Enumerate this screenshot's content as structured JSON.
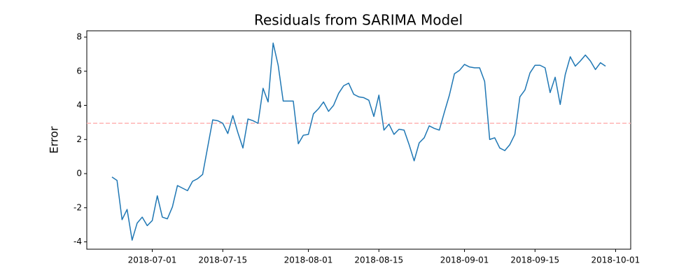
{
  "chart_data": {
    "type": "line",
    "title": "Residuals from SARIMA Model",
    "y_label": "Error",
    "x": [
      "2018-06-23",
      "2018-06-24",
      "2018-06-25",
      "2018-06-26",
      "2018-06-27",
      "2018-06-28",
      "2018-06-29",
      "2018-06-30",
      "2018-07-01",
      "2018-07-02",
      "2018-07-03",
      "2018-07-04",
      "2018-07-05",
      "2018-07-06",
      "2018-07-07",
      "2018-07-08",
      "2018-07-09",
      "2018-07-10",
      "2018-07-11",
      "2018-07-12",
      "2018-07-13",
      "2018-07-14",
      "2018-07-15",
      "2018-07-16",
      "2018-07-17",
      "2018-07-18",
      "2018-07-19",
      "2018-07-20",
      "2018-07-21",
      "2018-07-22",
      "2018-07-23",
      "2018-07-24",
      "2018-07-25",
      "2018-07-26",
      "2018-07-27",
      "2018-07-28",
      "2018-07-29",
      "2018-07-30",
      "2018-07-31",
      "2018-08-01",
      "2018-08-02",
      "2018-08-03",
      "2018-08-04",
      "2018-08-05",
      "2018-08-06",
      "2018-08-07",
      "2018-08-08",
      "2018-08-09",
      "2018-08-10",
      "2018-08-11",
      "2018-08-12",
      "2018-08-13",
      "2018-08-14",
      "2018-08-15",
      "2018-08-16",
      "2018-08-17",
      "2018-08-18",
      "2018-08-19",
      "2018-08-20",
      "2018-08-21",
      "2018-08-22",
      "2018-08-23",
      "2018-08-24",
      "2018-08-25",
      "2018-08-26",
      "2018-08-27",
      "2018-08-28",
      "2018-08-29",
      "2018-08-30",
      "2018-08-31",
      "2018-09-01",
      "2018-09-02",
      "2018-09-03",
      "2018-09-04",
      "2018-09-05",
      "2018-09-06",
      "2018-09-07",
      "2018-09-08",
      "2018-09-09",
      "2018-09-10",
      "2018-09-11",
      "2018-09-12",
      "2018-09-13",
      "2018-09-14",
      "2018-09-15",
      "2018-09-16",
      "2018-09-17",
      "2018-09-18",
      "2018-09-19",
      "2018-09-20",
      "2018-09-21",
      "2018-09-22",
      "2018-09-23",
      "2018-09-24",
      "2018-09-25",
      "2018-09-26",
      "2018-09-27",
      "2018-09-28",
      "2018-09-29"
    ],
    "series": [
      {
        "color": "#1f77b4",
        "values": [
          -0.2,
          -0.4,
          -2.7,
          -2.1,
          -3.9,
          -2.9,
          -2.55,
          -3.05,
          -2.75,
          -1.3,
          -2.55,
          -2.65,
          -1.95,
          -0.7,
          -0.85,
          -1.0,
          -0.45,
          -0.3,
          -0.05,
          1.55,
          3.15,
          3.1,
          2.95,
          2.35,
          3.4,
          2.4,
          1.5,
          3.2,
          3.1,
          2.95,
          5.0,
          4.2,
          7.65,
          6.35,
          4.25,
          4.25,
          4.25,
          1.75,
          2.25,
          2.3,
          3.5,
          3.8,
          4.2,
          3.65,
          4.0,
          4.7,
          5.15,
          5.3,
          4.65,
          4.5,
          4.45,
          4.3,
          3.35,
          4.6,
          2.55,
          2.9,
          2.3,
          2.6,
          2.55,
          1.7,
          0.75,
          1.8,
          2.1,
          2.8,
          2.65,
          2.55,
          3.6,
          4.6,
          5.85,
          6.05,
          6.4,
          6.25,
          6.2,
          6.2,
          5.4,
          2.0,
          2.1,
          1.5,
          1.35,
          1.7,
          2.3,
          4.5,
          4.9,
          5.9,
          6.35,
          6.35,
          6.2,
          4.75,
          5.65,
          4.05,
          5.8,
          6.85,
          6.3,
          6.6,
          6.95,
          6.6,
          6.1,
          6.5,
          6.3
        ]
      }
    ],
    "reference_line": {
      "value": 2.95,
      "color": "#ffb3b3",
      "style": "dashed"
    },
    "xlim": [
      "2018-06-18",
      "2018-10-04"
    ],
    "xticks": [
      "2018-07-01",
      "2018-07-15",
      "2018-08-01",
      "2018-08-15",
      "2018-09-01",
      "2018-09-15",
      "2018-10-01"
    ],
    "ylim": [
      -4.43,
      8.37
    ],
    "yticks": [
      -4,
      -2,
      0,
      2,
      4,
      6,
      8
    ],
    "grid": false
  }
}
